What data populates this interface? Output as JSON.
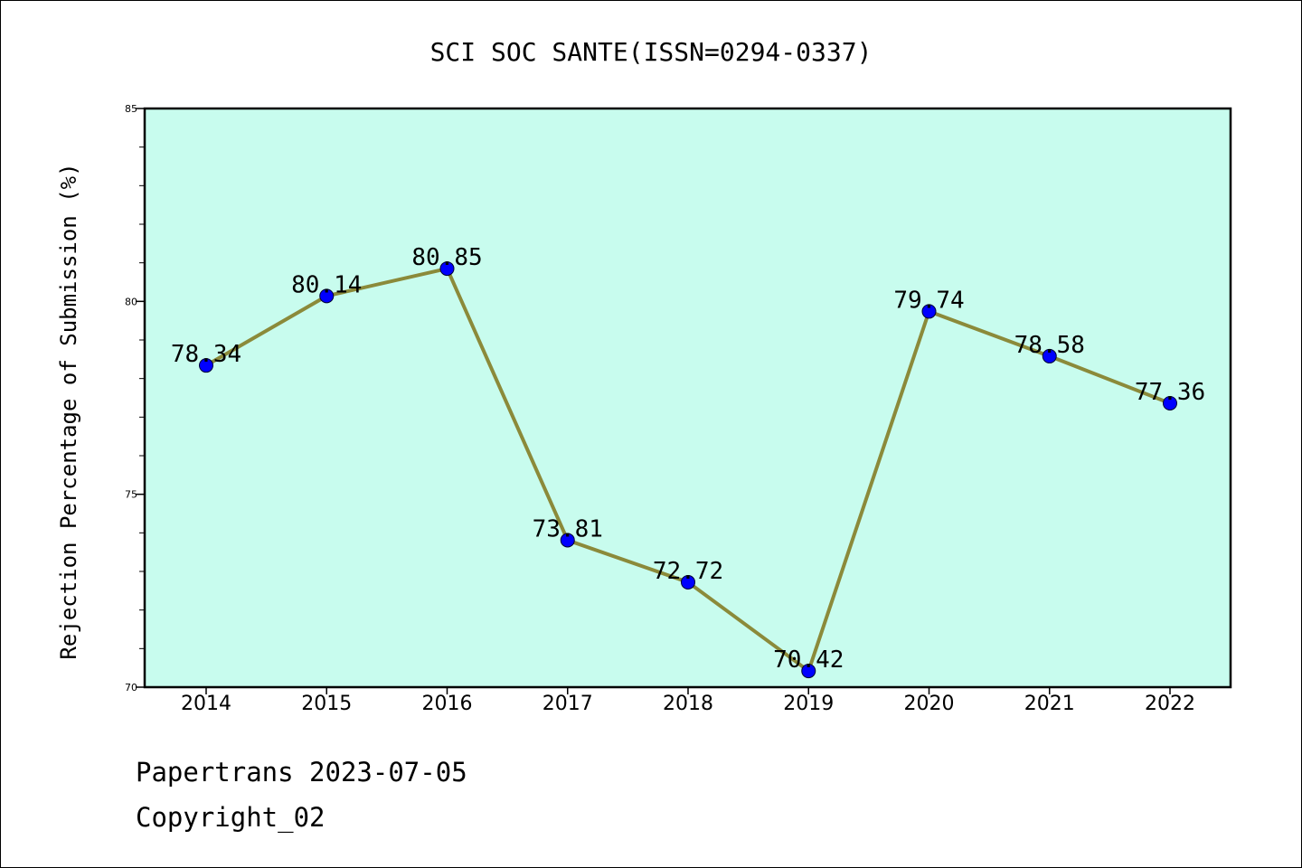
{
  "chart_data": {
    "type": "line",
    "title": "SCI SOC SANTE(ISSN=0294-0337)",
    "xlabel": "",
    "ylabel": "Rejection Percentage of Submission (%)",
    "categories": [
      "2014",
      "2015",
      "2016",
      "2017",
      "2018",
      "2019",
      "2020",
      "2021",
      "2022"
    ],
    "series": [
      {
        "name": "Rejection Percentage",
        "values": [
          78.34,
          80.14,
          80.85,
          73.81,
          72.72,
          70.42,
          79.74,
          78.58,
          77.36
        ]
      }
    ],
    "data_labels": [
      "78.34",
      "80.14",
      "80.85",
      "73.81",
      "72.72",
      "70.42",
      "79.74",
      "78.58",
      "77.36"
    ],
    "ylim": [
      70,
      85
    ],
    "yticks": [
      70,
      75,
      80,
      85
    ],
    "ytick_labels": [
      "70",
      "75",
      "80",
      "85"
    ],
    "grid": false,
    "legend": "none"
  },
  "colors": {
    "plot_background": "#c8fcee",
    "line": "#8b8a3a",
    "marker": "#0000ff",
    "axis": "#000000",
    "text": "#000000"
  },
  "footer": {
    "line1": "Papertrans 2023-07-05",
    "line2": "Copyright_02"
  }
}
